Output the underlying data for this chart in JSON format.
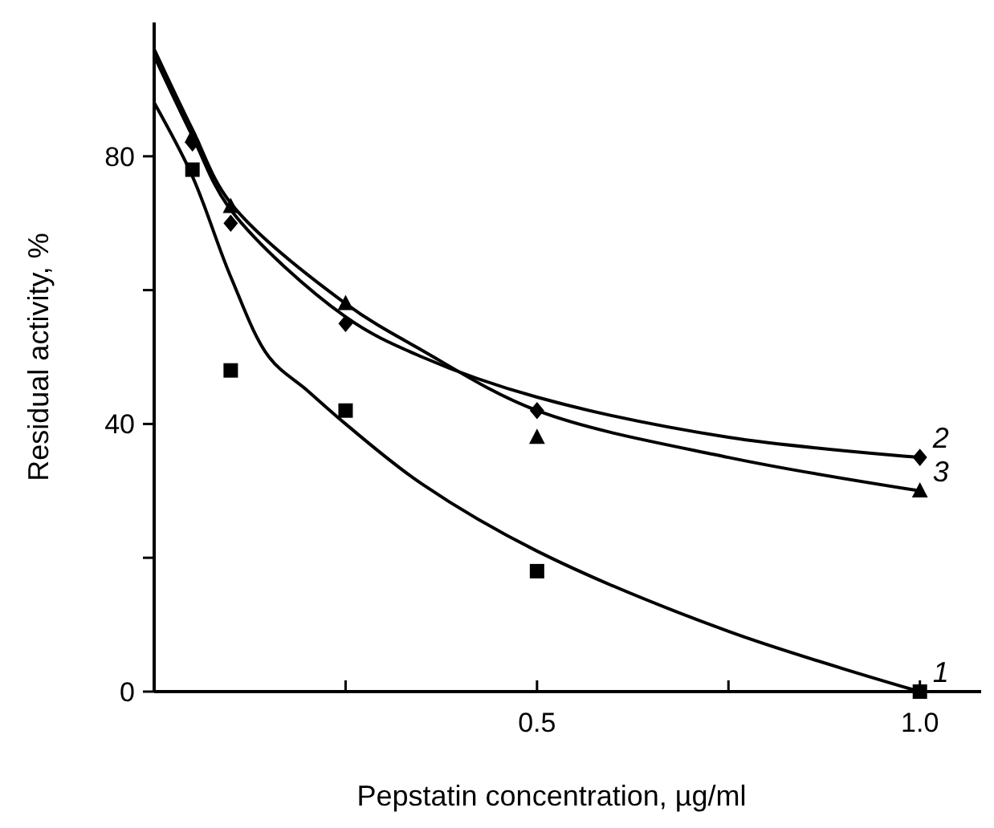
{
  "chart_data": {
    "type": "scatter",
    "xlabel": "Pepstatin concentration, µg/ml",
    "ylabel": "Residual activity, %",
    "xlim": [
      0,
      1.08
    ],
    "ylim": [
      0,
      100
    ],
    "xticks": [
      {
        "value": 0.25,
        "label": null
      },
      0.5,
      {
        "value": 0.75,
        "label": null
      },
      {
        "value": 1,
        "label": "1.0"
      }
    ],
    "yticks": [
      0,
      {
        "value": 20,
        "label": null
      },
      40,
      {
        "value": 60,
        "label": null
      },
      80
    ],
    "grid": false,
    "series": [
      {
        "name": "1",
        "marker": "square",
        "color": "#000000",
        "x": [
          0.05,
          0.1,
          0.25,
          0.5,
          1.0
        ],
        "values": [
          78,
          48,
          42,
          18,
          0
        ]
      },
      {
        "name": "2",
        "marker": "diamond",
        "color": "#000000",
        "x": [
          0.05,
          0.1,
          0.25,
          0.5,
          1.0
        ],
        "values": [
          82,
          70,
          55,
          42,
          35
        ]
      },
      {
        "name": "3",
        "marker": "triangle",
        "color": "#000000",
        "x": [
          0.05,
          0.1,
          0.25,
          0.5,
          1.0
        ],
        "values": [
          83,
          72.5,
          58,
          38,
          30
        ]
      },
      {
        "type": "line",
        "line_style": "solid",
        "color": "#000000",
        "x": [
          0,
          0.05,
          0.1,
          0.15,
          0.2,
          0.25,
          0.35,
          0.5,
          0.75,
          1.0
        ],
        "values": [
          88,
          77,
          62,
          50,
          45,
          40,
          31,
          21,
          9,
          0
        ]
      },
      {
        "type": "line",
        "line_style": "solid",
        "color": "#000000",
        "x": [
          0,
          0.05,
          0.1,
          0.25,
          0.35,
          0.5,
          0.75,
          1.0
        ],
        "values": [
          95,
          83,
          72,
          56,
          50,
          44,
          38,
          35
        ]
      },
      {
        "type": "line",
        "line_style": "solid",
        "color": "#000000",
        "x": [
          0,
          0.05,
          0.1,
          0.25,
          0.35,
          0.5,
          0.75,
          1.0
        ],
        "values": [
          96,
          84,
          73,
          58,
          51,
          42,
          35,
          30
        ]
      }
    ]
  }
}
